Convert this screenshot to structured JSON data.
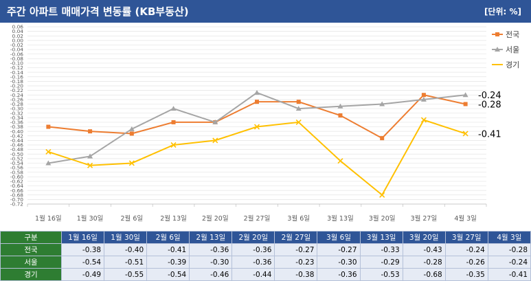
{
  "header": {
    "title": "주간 아파트 매매가격 변동률 (KB부동산)",
    "unit": "[단위: %]"
  },
  "chart_data": {
    "type": "line",
    "categories": [
      "1월 16일",
      "1월 30일",
      "2월 6일",
      "2월 13일",
      "2월 20일",
      "2월 27일",
      "3월 6일",
      "3월 13일",
      "3월 20일",
      "3월 27일",
      "4월 3일"
    ],
    "ylim": [
      -0.72,
      0.06
    ],
    "ytick_labels": [
      "0.06",
      "0.04",
      "0.02",
      "0.00",
      "-0.02",
      "-0.04",
      "-0.06",
      "-0.08",
      "-0.10",
      "-0.12",
      "-0.14",
      "-0.16",
      "-0.18",
      "-0.20",
      "-0.22",
      "-0.24",
      "-0.26",
      "-0.28",
      "-0.30",
      "-0.32",
      "-0.34",
      "-0.36",
      "-0.38",
      "-0.40",
      "-0.42",
      "-0.44",
      "-0.46",
      "-0.48",
      "-0.50",
      "-0.52",
      "-0.54",
      "-0.56",
      "-0.58",
      "-0.60",
      "-0.62",
      "-0.64",
      "-0.66",
      "-0.68",
      "-0.70",
      "-0.72"
    ],
    "series": [
      {
        "name": "전국",
        "color": "#ed7d31",
        "marker": "square",
        "values": [
          -0.38,
          -0.4,
          -0.41,
          -0.36,
          -0.36,
          -0.27,
          -0.27,
          -0.33,
          -0.43,
          -0.24,
          -0.28
        ]
      },
      {
        "name": "서울",
        "color": "#a5a5a5",
        "marker": "triangle",
        "values": [
          -0.54,
          -0.51,
          -0.39,
          -0.3,
          -0.36,
          -0.23,
          -0.3,
          -0.29,
          -0.28,
          -0.26,
          -0.24
        ]
      },
      {
        "name": "경기",
        "color": "#ffc000",
        "marker": "x",
        "values": [
          -0.49,
          -0.55,
          -0.54,
          -0.46,
          -0.44,
          -0.38,
          -0.36,
          -0.53,
          -0.68,
          -0.35,
          -0.41
        ]
      }
    ],
    "end_labels": [
      {
        "series": "서울",
        "text": "-0.24"
      },
      {
        "series": "전국",
        "text": "-0.28"
      },
      {
        "series": "경기",
        "text": "-0.41"
      }
    ],
    "legend_position": "top-right",
    "grid": true
  },
  "table": {
    "header_label": "구분",
    "columns": [
      "1월 16일",
      "1월 30일",
      "2월 6일",
      "2월 13일",
      "2월 20일",
      "2월 27일",
      "3월 6일",
      "3월 13일",
      "3월 20일",
      "3월 27일",
      "4월 3일"
    ],
    "rows": [
      {
        "label": "전국",
        "values": [
          "-0.38",
          "-0.40",
          "-0.41",
          "-0.36",
          "-0.36",
          "-0.27",
          "-0.27",
          "-0.33",
          "-0.43",
          "-0.24",
          "-0.28"
        ]
      },
      {
        "label": "서울",
        "values": [
          "-0.54",
          "-0.51",
          "-0.39",
          "-0.30",
          "-0.36",
          "-0.23",
          "-0.30",
          "-0.29",
          "-0.28",
          "-0.26",
          "-0.24"
        ]
      },
      {
        "label": "경기",
        "values": [
          "-0.49",
          "-0.55",
          "-0.54",
          "-0.46",
          "-0.44",
          "-0.38",
          "-0.36",
          "-0.53",
          "-0.68",
          "-0.35",
          "-0.41"
        ]
      }
    ]
  }
}
